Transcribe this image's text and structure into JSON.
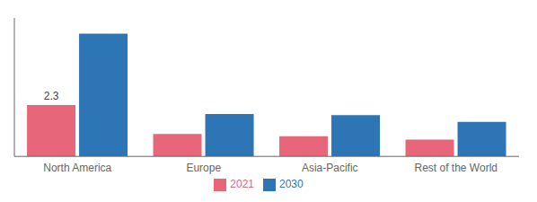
{
  "chart_data": {
    "type": "bar",
    "categories": [
      "North America",
      "Europe",
      "Asia-Pacific",
      "Rest of the World"
    ],
    "series": [
      {
        "name": "2021",
        "color": "#e8667a",
        "values": [
          2.3,
          1.0,
          0.9,
          0.75
        ]
      },
      {
        "name": "2030",
        "color": "#2e75b6",
        "values": [
          5.5,
          1.9,
          1.85,
          1.55
        ]
      }
    ],
    "ylim": [
      0,
      6.2
    ],
    "tick_labels": "x",
    "grid": false,
    "legend": "bottom",
    "annotations": [
      {
        "text": "2.3",
        "category": "North America",
        "series": "2021"
      }
    ]
  }
}
